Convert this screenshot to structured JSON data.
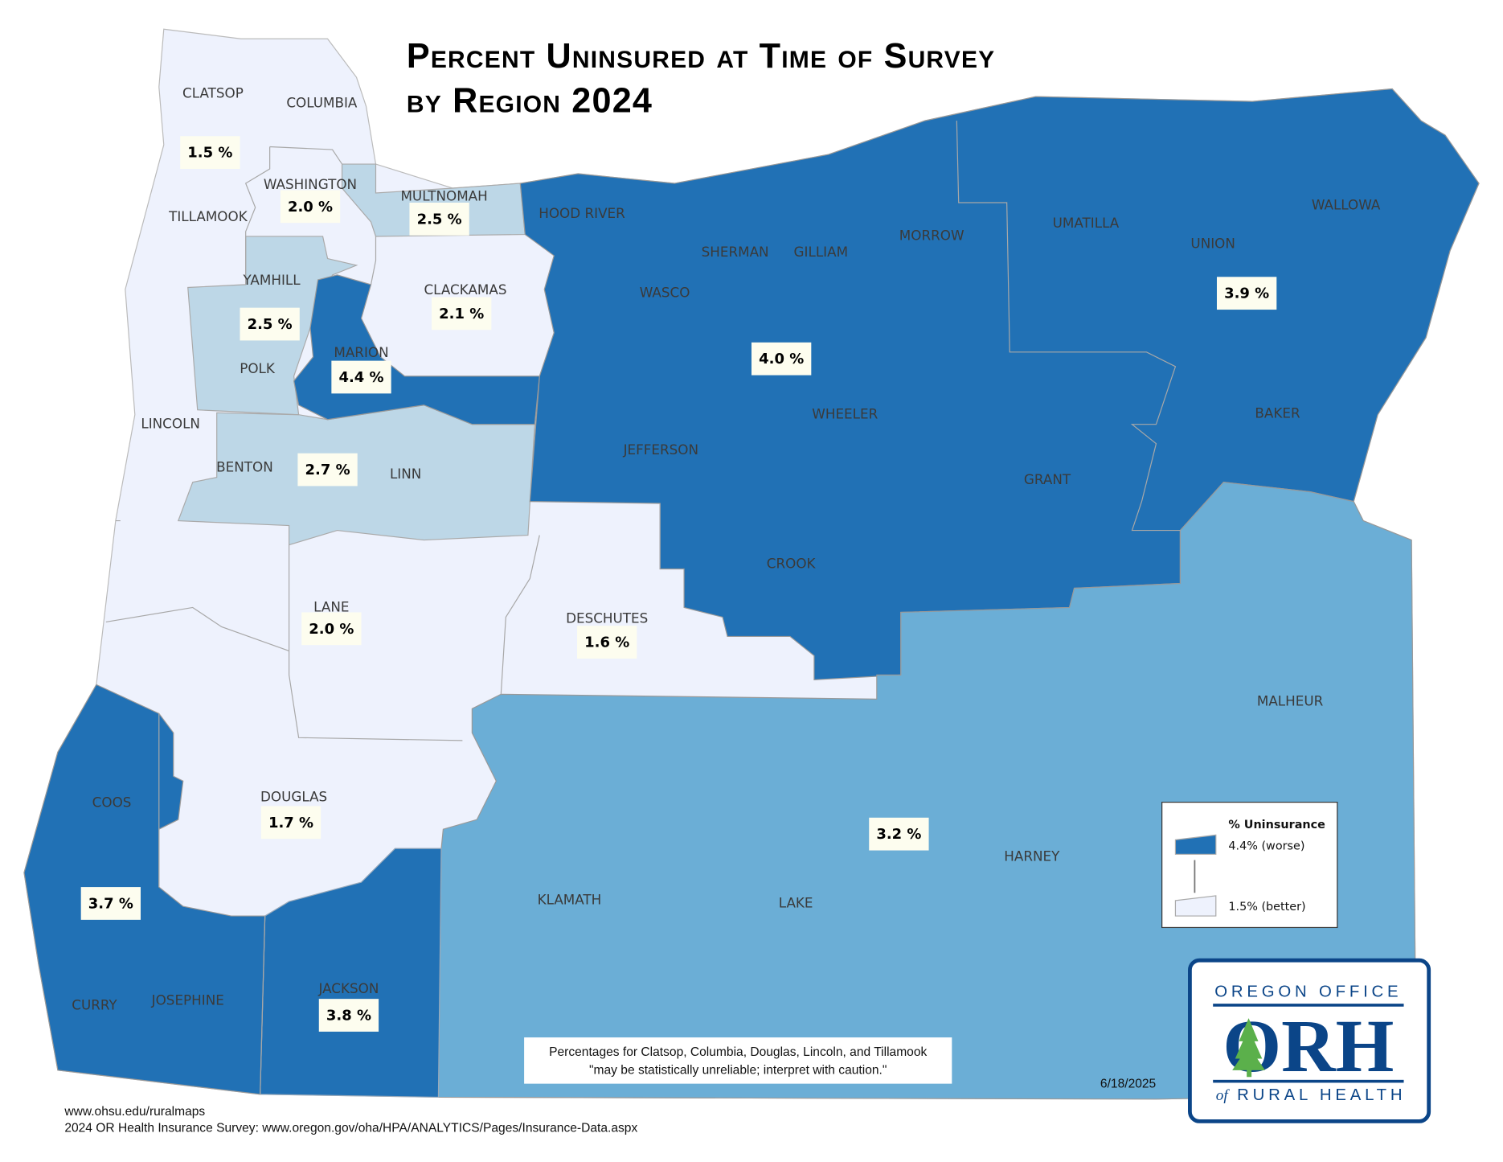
{
  "title": {
    "line1": "Percent Uninsured at Time of Survey",
    "line2": "by Region 2024"
  },
  "colors": {
    "lowest": "#eef2fd",
    "low": "#bdd7e7",
    "mid": "#6baed6",
    "high": "#2171b5",
    "label_box": "#fdfdef",
    "logo_blue": "#0b4588",
    "logo_green": "#5bb04b"
  },
  "counties": [
    "CLATSOP",
    "COLUMBIA",
    "WASHINGTON",
    "MULTNOMAH",
    "TILLAMOOK",
    "HOOD RIVER",
    "SHERMAN",
    "GILLIAM",
    "MORROW",
    "UMATILLA",
    "WALLOWA",
    "UNION",
    "YAMHILL",
    "CLACKAMAS",
    "WASCO",
    "POLK",
    "MARION",
    "LINCOLN",
    "WHEELER",
    "BAKER",
    "JEFFERSON",
    "BENTON",
    "LINN",
    "GRANT",
    "CROOK",
    "LANE",
    "DESCHUTES",
    "MALHEUR",
    "COOS",
    "DOUGLAS",
    "HARNEY",
    "KLAMATH",
    "LAKE",
    "CURRY",
    "JOSEPHINE",
    "JACKSON"
  ],
  "regions": [
    {
      "counties": "Clatsop, Columbia, Tillamook, Lincoln",
      "value": "1.5 %",
      "percent": 1.5
    },
    {
      "counties": "Washington",
      "value": "2.0 %",
      "percent": 2.0
    },
    {
      "counties": "Multnomah",
      "value": "2.5 %",
      "percent": 2.5
    },
    {
      "counties": "Yamhill, Polk",
      "value": "2.5 %",
      "percent": 2.5
    },
    {
      "counties": "Clackamas",
      "value": "2.1 %",
      "percent": 2.1
    },
    {
      "counties": "Marion",
      "value": "4.4 %",
      "percent": 4.4
    },
    {
      "counties": "Benton, Linn",
      "value": "2.7 %",
      "percent": 2.7
    },
    {
      "counties": "Hood River, Wasco, Sherman, Gilliam, Morrow, Wheeler, Jefferson, Crook, Grant",
      "value": "4.0 %",
      "percent": 4.0
    },
    {
      "counties": "Umatilla, Union, Wallowa, Baker",
      "value": "3.9 %",
      "percent": 3.9
    },
    {
      "counties": "Lane",
      "value": "2.0 %",
      "percent": 2.0
    },
    {
      "counties": "Deschutes",
      "value": "1.6 %",
      "percent": 1.6
    },
    {
      "counties": "Douglas",
      "value": "1.7 %",
      "percent": 1.7
    },
    {
      "counties": "Coos, Curry, Josephine",
      "value": "3.7 %",
      "percent": 3.7
    },
    {
      "counties": "Jackson",
      "value": "3.8 %",
      "percent": 3.8
    },
    {
      "counties": "Klamath, Lake, Harney, Malheur",
      "value": "3.2 %",
      "percent": 3.2
    }
  ],
  "legend": {
    "title": "% Uninsurance",
    "high": "4.4% (worse)",
    "low": "1.5% (better)"
  },
  "note": {
    "line1": "Percentages for Clatsop, Columbia, Douglas, Lincoln, and Tillamook",
    "line2": "\"may be statistically unreliable; interpret with caution.\""
  },
  "date": "6/18/2025",
  "footer": {
    "line1": "www.ohsu.edu/ruralmaps",
    "line2": "2024 OR Health Insurance Survey: www.oregon.gov/oha/HPA/ANALYTICS/Pages/Insurance-Data.aspx"
  },
  "logo": {
    "top": "OREGON OFFICE",
    "mark": "ORH",
    "bottom_of": "of",
    "bottom": "RURAL HEALTH"
  }
}
